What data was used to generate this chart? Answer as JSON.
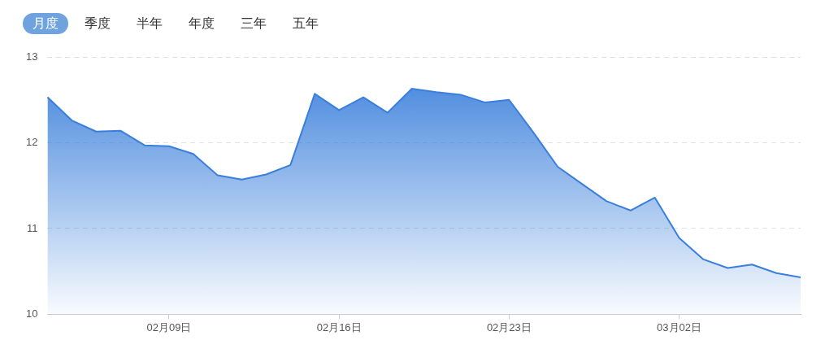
{
  "chart_data": {
    "type": "area",
    "annotations": [
      "月度",
      "季度",
      "半年",
      "年度",
      "三年",
      "五年"
    ],
    "categories": [
      null,
      null,
      null,
      null,
      null,
      "02月09日",
      null,
      null,
      null,
      null,
      null,
      null,
      "02月16日",
      null,
      null,
      null,
      null,
      null,
      null,
      "02月23日",
      null,
      null,
      null,
      null,
      null,
      null,
      "03月02日",
      null,
      null,
      null,
      null,
      null
    ],
    "series": [
      {
        "color": "#3a7fdb",
        "values": [
          12.53,
          12.26,
          12.13,
          12.14,
          11.97,
          11.96,
          11.87,
          11.62,
          11.57,
          11.63,
          11.74,
          12.57,
          12.38,
          12.53,
          12.35,
          12.63,
          12.59,
          12.56,
          12.47,
          12.5,
          12.12,
          11.72,
          11.52,
          11.32,
          11.21,
          11.36,
          10.89,
          10.64,
          10.54,
          10.58,
          10.48,
          10.43
        ]
      }
    ],
    "ylim": [
      10,
      13
    ],
    "yticks": [
      10,
      11,
      12,
      13
    ],
    "grid": "y",
    "legend": false,
    "marker": "none"
  }
}
